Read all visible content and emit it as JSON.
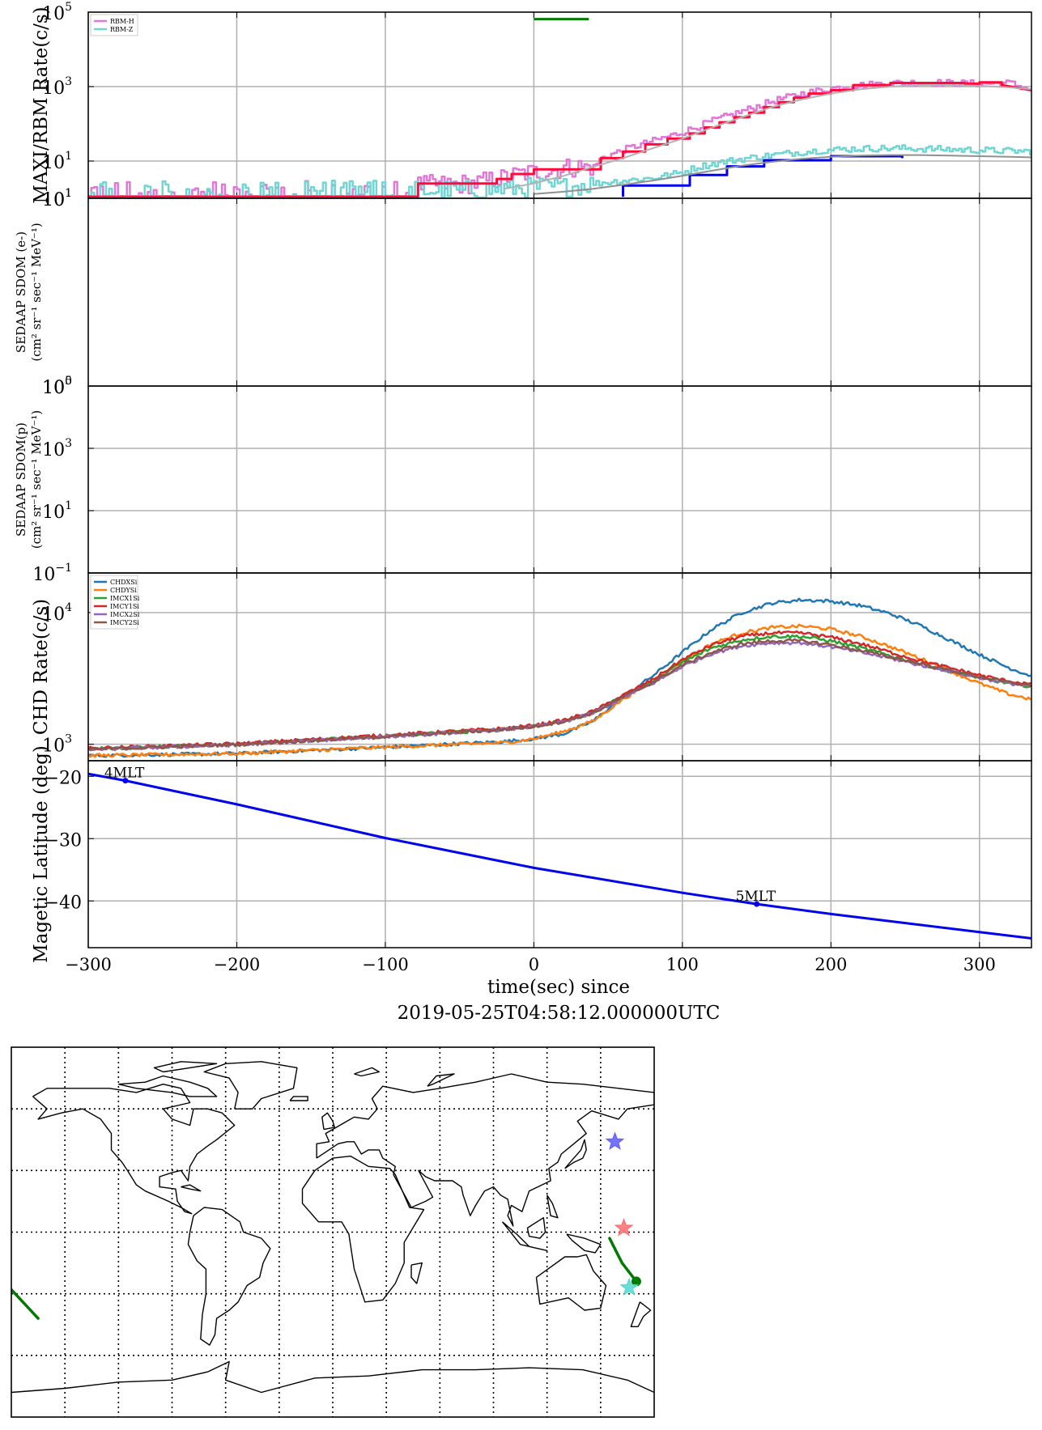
{
  "colors": {
    "rbm_h": "#e377d8",
    "rbm_z": "#6fd6d4",
    "maxi_h": "#ff0a3a",
    "maxi_z": "#0000ee",
    "model": "#b3b3b3",
    "model2": "#909090",
    "green": "#007a00",
    "chdxsi": "#1f77b4",
    "chdysi": "#ff7f0e",
    "imcx1si": "#2ca02c",
    "imcy1si": "#d62728",
    "imcx2si": "#9467bd",
    "imcy2si": "#8c564b",
    "mlat": "#0000ee",
    "star_blue": "#5b5bff",
    "star_red": "#ff6b6b",
    "star_cyan": "#50d8d0"
  },
  "x_axis": {
    "label_line1": "time(sec) since",
    "label_line2": "2019-05-25T04:58:12.000000UTC",
    "range": [
      -300,
      335
    ],
    "ticks": [
      -300,
      -200,
      -100,
      0,
      100,
      200,
      300
    ],
    "tick_labels": [
      "−300",
      "−200",
      "−100",
      "0",
      "100",
      "200",
      "300"
    ]
  },
  "chart_data": [
    {
      "type": "line",
      "name": "maxi_rbm",
      "ylabel": "MAXI/RBM Rate(c/s)",
      "yscale": "log",
      "ylim": [
        1,
        100000
      ],
      "yticks": [
        {
          "base": "10",
          "exp": "5",
          "v": 100000
        },
        {
          "base": "10",
          "exp": "3",
          "v": 1000
        },
        {
          "base": "10",
          "exp": "1",
          "v": 10
        },
        {
          "base": "10",
          "exp": "1",
          "v": 1
        }
      ],
      "legend": {
        "placement": "top-left",
        "entries": [
          "RBM-H",
          "RBM-Z"
        ]
      },
      "gti_bar": {
        "x": [
          0,
          37
        ],
        "y": 65000
      },
      "series": [
        {
          "name": "RBM-H",
          "x": [
            -300,
            -80,
            -78,
            -40,
            -30,
            -20,
            -10,
            0,
            10,
            20,
            30,
            40,
            45,
            60,
            80,
            100,
            120,
            140,
            160,
            180,
            200,
            220,
            240,
            260,
            280,
            300,
            320,
            335
          ],
          "y": [
            1.6,
            1.6,
            2.2,
            2.5,
            3,
            3.5,
            4.5,
            5,
            5.5,
            6.5,
            7,
            7,
            12,
            20,
            35,
            60,
            120,
            220,
            400,
            650,
            900,
            1100,
            1250,
            1300,
            1250,
            1200,
            1250,
            800
          ]
        },
        {
          "name": "RBM-Z",
          "x": [
            -300,
            -80,
            -40,
            -20,
            0,
            20,
            40,
            60,
            80,
            100,
            110,
            130,
            150,
            170,
            190,
            210,
            230,
            250,
            270,
            290,
            310,
            335
          ],
          "y": [
            1.6,
            1.6,
            1.6,
            1.8,
            2,
            2,
            2.5,
            3,
            3.5,
            5,
            7,
            10,
            13,
            16,
            19,
            21,
            22,
            22,
            21,
            20,
            19,
            18
          ]
        },
        {
          "name": "MAXI-H",
          "x": [
            -300,
            -78,
            -78,
            -25,
            -25,
            -15,
            -15,
            0,
            0,
            45,
            45,
            60,
            60,
            75,
            75,
            90,
            90,
            105,
            105,
            115,
            115,
            125,
            125,
            135,
            135,
            145,
            145,
            155,
            155,
            165,
            165,
            175,
            175,
            185,
            185,
            200,
            200,
            215,
            215,
            240,
            240,
            290,
            290,
            300,
            300,
            315,
            315,
            335
          ],
          "y": [
            1.1,
            1.1,
            2.5,
            2.5,
            3.3,
            3.3,
            4.5,
            4.5,
            6,
            6,
            12,
            12,
            18,
            18,
            28,
            28,
            40,
            40,
            55,
            55,
            80,
            80,
            110,
            110,
            150,
            150,
            200,
            200,
            280,
            280,
            380,
            380,
            500,
            500,
            650,
            650,
            800,
            800,
            1100,
            1100,
            1250,
            1250,
            1200,
            1200,
            1300,
            1300,
            1100,
            800
          ]
        },
        {
          "name": "MAXI-Z",
          "x": [
            60,
            60,
            105,
            105,
            130,
            130,
            155,
            155,
            200,
            200,
            248,
            248
          ],
          "y": [
            1.1,
            2.2,
            2.2,
            4.2,
            4.2,
            7.2,
            7.2,
            10.5,
            10.5,
            13.5,
            13.5,
            12
          ]
        },
        {
          "name": "model-h",
          "x": [
            -20,
            0,
            20,
            40,
            60,
            80,
            100,
            120,
            140,
            160,
            180,
            200,
            220,
            240,
            260,
            280,
            300,
            320,
            335
          ],
          "y": [
            1.8,
            2.5,
            4,
            7,
            12,
            22,
            40,
            80,
            150,
            280,
            450,
            650,
            850,
            1000,
            1100,
            1100,
            1050,
            950,
            850
          ]
        },
        {
          "name": "model-z",
          "x": [
            0,
            20,
            40,
            60,
            80,
            100,
            120,
            140,
            160,
            180,
            200,
            220,
            240,
            260,
            280,
            300,
            320,
            335
          ],
          "y": [
            1.3,
            1.5,
            1.8,
            2.3,
            3,
            4,
            5.5,
            7.5,
            9.5,
            11.5,
            13,
            14,
            14.5,
            14.5,
            14,
            13.5,
            13,
            12.5
          ]
        }
      ]
    },
    {
      "type": "line",
      "name": "sedaap_e",
      "ylabel_line1": "SEDAAP SDOM (e-)",
      "ylabel_line2": "(cm² sr⁻¹ sec⁻¹ MeV⁻¹)",
      "yscale": "log",
      "ylim": [
        1,
        10
      ],
      "yticks": [
        {
          "base": "10",
          "exp": "1",
          "v": 10
        },
        {
          "base": "10",
          "exp": "0",
          "v": 1
        }
      ],
      "series": []
    },
    {
      "type": "line",
      "name": "sedaap_p",
      "ylabel_line1": "SEDAAP SDOM(p)",
      "ylabel_line2": "(cm² sr⁻¹ sec⁻¹ MeV⁻¹)",
      "yscale": "log",
      "ylim": [
        0.1,
        100000
      ],
      "yticks": [
        {
          "base": "10",
          "exp": "5",
          "v": 100000
        },
        {
          "base": "10",
          "exp": "3",
          "v": 1000
        },
        {
          "base": "10",
          "exp": "1",
          "v": 10
        },
        {
          "base": "10",
          "exp": "−1",
          "v": 0.1
        }
      ],
      "series": []
    },
    {
      "type": "line",
      "name": "chd",
      "ylabel": "CHD Rate(c/s)",
      "yscale": "log",
      "ylim": [
        750,
        20000
      ],
      "yticks": [
        {
          "base": "10",
          "exp": "4",
          "v": 10000
        },
        {
          "base": "10",
          "exp": "3",
          "v": 1000
        }
      ],
      "legend": {
        "placement": "top-left",
        "entries": [
          "CHDXSi",
          "CHDYSi",
          "IMCX1Si",
          "IMCY1Si",
          "IMCX2Si",
          "IMCY2Si"
        ]
      },
      "series": [
        {
          "name": "CHDXSi",
          "x": [
            -300,
            -200,
            -100,
            -20,
            0,
            20,
            40,
            60,
            80,
            100,
            120,
            140,
            160,
            180,
            200,
            220,
            240,
            260,
            280,
            300,
            320,
            335
          ],
          "y": [
            820,
            850,
            950,
            1050,
            1100,
            1200,
            1500,
            2300,
            3300,
            5000,
            7500,
            10000,
            11800,
            12500,
            12200,
            11300,
            9800,
            8000,
            6200,
            4800,
            3800,
            3300
          ]
        },
        {
          "name": "CHDYSi",
          "x": [
            -300,
            -200,
            -100,
            -20,
            0,
            20,
            40,
            60,
            80,
            100,
            120,
            140,
            160,
            180,
            200,
            220,
            240,
            260,
            280,
            300,
            320,
            335
          ],
          "y": [
            820,
            850,
            950,
            1030,
            1100,
            1250,
            1500,
            2200,
            3000,
            4300,
            5800,
            7000,
            7700,
            7900,
            7500,
            6600,
            5500,
            4500,
            3600,
            2900,
            2400,
            2200
          ]
        },
        {
          "name": "IMCX1Si",
          "x": [
            -300,
            -200,
            -100,
            -20,
            0,
            20,
            40,
            60,
            80,
            100,
            120,
            140,
            160,
            180,
            200,
            220,
            240,
            260,
            280,
            300,
            320,
            335
          ],
          "y": [
            920,
            1000,
            1150,
            1300,
            1370,
            1500,
            1750,
            2300,
            3000,
            4200,
            5400,
            6200,
            6600,
            6600,
            6100,
            5400,
            4700,
            4100,
            3600,
            3200,
            2900,
            2750
          ]
        },
        {
          "name": "IMCY1Si",
          "x": [
            -300,
            -200,
            -100,
            -20,
            0,
            20,
            40,
            60,
            80,
            100,
            120,
            140,
            160,
            180,
            200,
            220,
            240,
            260,
            280,
            300,
            320,
            335
          ],
          "y": [
            930,
            1010,
            1170,
            1320,
            1390,
            1520,
            1780,
            2350,
            3100,
            4400,
            5700,
            6600,
            7000,
            7000,
            6500,
            5800,
            5000,
            4300,
            3800,
            3350,
            3000,
            2850
          ]
        },
        {
          "name": "IMCX2Si",
          "x": [
            -300,
            -200,
            -100,
            -20,
            0,
            20,
            40,
            60,
            80,
            100,
            120,
            140,
            160,
            180,
            200,
            220,
            240,
            260,
            280,
            300,
            320,
            335
          ],
          "y": [
            910,
            990,
            1140,
            1290,
            1360,
            1480,
            1720,
            2250,
            2900,
            3900,
            4900,
            5600,
            5900,
            5900,
            5500,
            5000,
            4500,
            4000,
            3600,
            3200,
            2900,
            2750
          ]
        },
        {
          "name": "IMCY2Si",
          "x": [
            -300,
            -200,
            -100,
            -20,
            0,
            20,
            40,
            60,
            80,
            100,
            120,
            140,
            160,
            180,
            200,
            220,
            240,
            260,
            280,
            300,
            320,
            335
          ],
          "y": [
            915,
            995,
            1145,
            1295,
            1365,
            1490,
            1730,
            2280,
            2950,
            4000,
            5000,
            5800,
            6100,
            6100,
            5700,
            5150,
            4600,
            4100,
            3650,
            3250,
            2950,
            2800
          ]
        }
      ]
    },
    {
      "type": "line",
      "name": "mlat",
      "ylabel": "Magetic Latitude  (deg)",
      "ylim": [
        -47.5,
        -17.5
      ],
      "yticks": [
        {
          "label": "−20",
          "v": -20
        },
        {
          "label": "−30",
          "v": -30
        },
        {
          "label": "−40",
          "v": -40
        }
      ],
      "series": [
        {
          "name": "mlat",
          "x": [
            -300,
            -275,
            -200,
            -100,
            0,
            100,
            150,
            200,
            300,
            335
          ],
          "y": [
            -19.6,
            -20.7,
            -24.5,
            -29.9,
            -34.7,
            -38.7,
            -40.5,
            -42.1,
            -45.0,
            -46.0
          ]
        }
      ],
      "annotations": [
        {
          "text": "4MLT",
          "x": -275,
          "y": -20.7
        },
        {
          "text": "5MLT",
          "x": 150,
          "y": -40.5
        }
      ]
    }
  ],
  "map": {
    "lon_range": [
      -180,
      180
    ],
    "lat_range": [
      -90,
      90
    ],
    "grid_lon": [
      -150,
      -120,
      -90,
      -60,
      -30,
      0,
      30,
      60,
      90,
      120,
      150
    ],
    "grid_lat": [
      -60,
      -30,
      0,
      30,
      60
    ],
    "track_segments": [
      {
        "lon": [
          -180,
          -165
        ],
        "lat": [
          -28,
          -42
        ]
      },
      {
        "lon": [
          155,
          162,
          170
        ],
        "lat": [
          -3,
          -15,
          -24
        ]
      }
    ],
    "end_marker": {
      "lon": 170,
      "lat": -24
    },
    "stars": [
      {
        "name": "blue",
        "lon": 158,
        "lat": 44
      },
      {
        "name": "red",
        "lon": 163,
        "lat": 2
      },
      {
        "name": "cyan",
        "lon": 166,
        "lat": -27
      }
    ]
  }
}
